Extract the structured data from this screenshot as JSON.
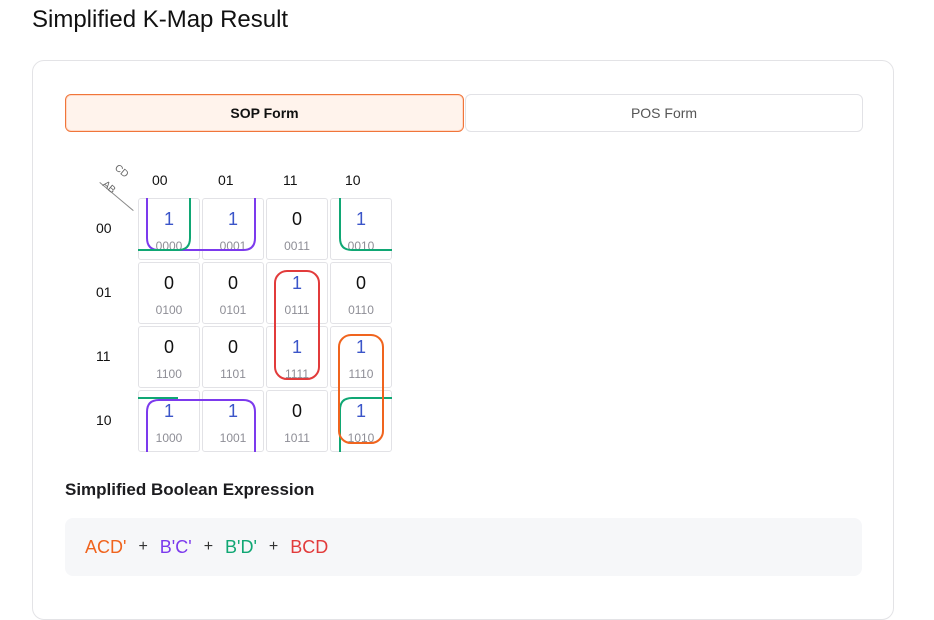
{
  "page_title": "Simplified K-Map Result",
  "tabs": [
    {
      "label": "SOP Form",
      "active": true
    },
    {
      "label": "POS Form",
      "active": false
    }
  ],
  "kmap": {
    "axis_col_label": "CD",
    "axis_row_label": "AB",
    "col_headers": [
      "00",
      "01",
      "11",
      "10"
    ],
    "row_headers": [
      "00",
      "01",
      "11",
      "10"
    ],
    "cells": [
      [
        {
          "v": "1",
          "b": "0000"
        },
        {
          "v": "1",
          "b": "0001"
        },
        {
          "v": "0",
          "b": "0011"
        },
        {
          "v": "1",
          "b": "0010"
        }
      ],
      [
        {
          "v": "0",
          "b": "0100"
        },
        {
          "v": "0",
          "b": "0101"
        },
        {
          "v": "1",
          "b": "0111"
        },
        {
          "v": "0",
          "b": "0110"
        }
      ],
      [
        {
          "v": "0",
          "b": "1100"
        },
        {
          "v": "0",
          "b": "1101"
        },
        {
          "v": "1",
          "b": "1111"
        },
        {
          "v": "1",
          "b": "1110"
        }
      ],
      [
        {
          "v": "1",
          "b": "1000"
        },
        {
          "v": "1",
          "b": "1001"
        },
        {
          "v": "0",
          "b": "1011"
        },
        {
          "v": "1",
          "b": "1010"
        }
      ]
    ],
    "group_colors": {
      "purple": "#7c3aed",
      "green": "#10a774",
      "red": "#e23b3b",
      "orange": "#f0641e"
    }
  },
  "expression": {
    "title": "Simplified Boolean Expression",
    "terms": [
      {
        "text": "ACD'",
        "color": "#f0641e"
      },
      {
        "text": "B'C'",
        "color": "#7c3aed"
      },
      {
        "text": "B'D'",
        "color": "#10a774"
      },
      {
        "text": "BCD",
        "color": "#e23b3b"
      }
    ],
    "operator": "+"
  }
}
